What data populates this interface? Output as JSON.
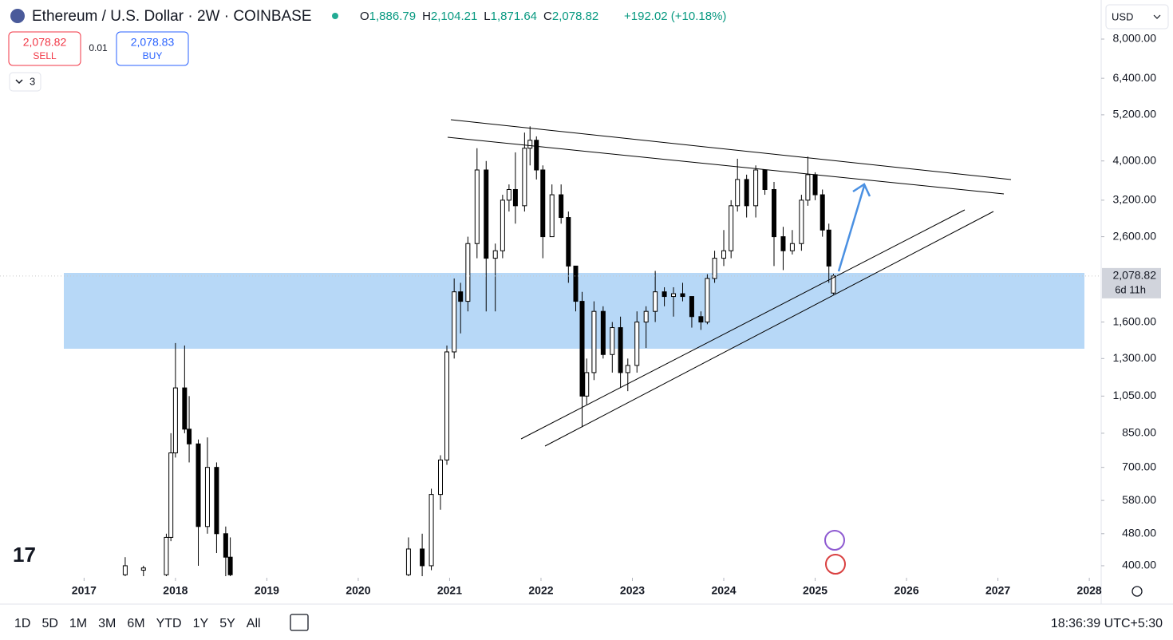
{
  "header": {
    "title": "Ethereum / U.S. Dollar · 2W · COINBASE",
    "ohlc": [
      {
        "key": "O",
        "text": "1,886.79"
      },
      {
        "key": "H",
        "text": "2,104.21"
      },
      {
        "key": "L",
        "text": "1,871.64"
      },
      {
        "key": "C",
        "text": "2,078.82"
      }
    ],
    "change": "+192.02 (+10.18%)",
    "sell": {
      "price": "2,078.82",
      "label": "SELL"
    },
    "spread": "0.01",
    "buy": {
      "price": "2,078.83",
      "label": "BUY"
    },
    "indicators": "3",
    "currency": "USD"
  },
  "chart_data": {
    "type": "candlestick",
    "log_scale": true,
    "up_color": "#ffffff",
    "down_color": "#000000",
    "zone_color": "#b7d8f7",
    "x": [
      2017.45,
      2017.65,
      2017.9,
      2017.95,
      2018.0,
      2018.1,
      2018.15,
      2018.25,
      2018.35,
      2018.45,
      2018.55,
      2018.6,
      2020.55,
      2020.7,
      2020.8,
      2020.9,
      2020.97,
      2021.05,
      2021.12,
      2021.2,
      2021.3,
      2021.4,
      2021.5,
      2021.58,
      2021.65,
      2021.72,
      2021.82,
      2021.88,
      2021.95,
      2022.02,
      2022.12,
      2022.22,
      2022.3,
      2022.38,
      2022.45,
      2022.5,
      2022.58,
      2022.68,
      2022.78,
      2022.87,
      2022.95,
      2023.05,
      2023.15,
      2023.25,
      2023.35,
      2023.45,
      2023.55,
      2023.65,
      2023.75,
      2023.82,
      2023.9,
      2024.0,
      2024.08,
      2024.15,
      2024.25,
      2024.35,
      2024.45,
      2024.55,
      2024.65,
      2024.75,
      2024.85,
      2024.92,
      2025.0,
      2025.08,
      2025.15,
      2025.2
    ],
    "open": [
      380,
      390,
      380,
      470,
      760,
      1100,
      870,
      800,
      500,
      700,
      480,
      420,
      380,
      440,
      400,
      600,
      730,
      1350,
      1900,
      1800,
      2500,
      3800,
      2300,
      2400,
      3200,
      3400,
      3100,
      4300,
      4500,
      3800,
      2600,
      3300,
      2900,
      2200,
      1800,
      1050,
      1200,
      1700,
      1330,
      1550,
      1200,
      1250,
      1600,
      1700,
      1900,
      1850,
      1880,
      1850,
      1650,
      1600,
      2050,
      2300,
      2400,
      3100,
      3600,
      3100,
      3800,
      3400,
      2600,
      2400,
      2500,
      3200,
      3700,
      3300,
      2700,
      1886.79
    ],
    "high": [
      420,
      400,
      480,
      850,
      1420,
      1400,
      1050,
      820,
      830,
      720,
      500,
      470,
      470,
      480,
      620,
      750,
      1400,
      2050,
      2000,
      2600,
      4300,
      4000,
      2500,
      3300,
      3500,
      4200,
      4700,
      4870,
      4600,
      3900,
      3500,
      3500,
      3000,
      2200,
      1900,
      1300,
      1800,
      1750,
      1600,
      1650,
      1300,
      1700,
      1750,
      2140,
      1950,
      1950,
      2000,
      1850,
      1700,
      2100,
      2400,
      2700,
      3200,
      4050,
      3700,
      3900,
      3800,
      3550,
      2750,
      2700,
      3300,
      4100,
      3750,
      3400,
      2800,
      2104.21
    ],
    "low": [
      370,
      370,
      370,
      460,
      740,
      850,
      720,
      400,
      480,
      430,
      377,
      370,
      370,
      370,
      390,
      550,
      710,
      1300,
      1500,
      1700,
      2300,
      1700,
      1700,
      2300,
      3000,
      2800,
      3000,
      3900,
      3600,
      2300,
      2600,
      2800,
      2000,
      1700,
      880,
      1000,
      1150,
      1300,
      1200,
      1100,
      1080,
      1200,
      1380,
      1600,
      1750,
      1650,
      1800,
      1550,
      1530,
      1580,
      2000,
      2200,
      2300,
      3000,
      2900,
      2900,
      3300,
      2200,
      2150,
      2350,
      2400,
      3100,
      3200,
      2600,
      2000,
      1871.64
    ],
    "close": [
      400,
      395,
      470,
      760,
      1100,
      870,
      800,
      500,
      700,
      480,
      420,
      380,
      440,
      400,
      600,
      730,
      1350,
      1900,
      1800,
      2500,
      3800,
      2300,
      2400,
      3200,
      3400,
      3100,
      4300,
      4500,
      3800,
      2600,
      3300,
      2900,
      2200,
      1800,
      1050,
      1200,
      1700,
      1330,
      1550,
      1200,
      1250,
      1600,
      1700,
      1900,
      1850,
      1880,
      1850,
      1650,
      1600,
      2050,
      2300,
      2400,
      3100,
      3600,
      3100,
      3800,
      3400,
      2600,
      2400,
      2500,
      3200,
      3700,
      3300,
      2700,
      2200,
      2078.82
    ],
    "xlim": [
      2016.08,
      2028.13
    ],
    "xticks": [
      2017,
      2018,
      2019,
      2020,
      2021,
      2022,
      2023,
      2024,
      2025,
      2026,
      2027,
      2028
    ],
    "ylim": [
      377,
      8720
    ],
    "yticks": [
      {
        "value": 400,
        "label": "400.00"
      },
      {
        "value": 480,
        "label": "480.00"
      },
      {
        "value": 580,
        "label": "580.00"
      },
      {
        "value": 700,
        "label": "700.00"
      },
      {
        "value": 850,
        "label": "850.00"
      },
      {
        "value": 1050,
        "label": "1,050.00"
      },
      {
        "value": 1300,
        "label": "1,300.00"
      },
      {
        "value": 1600,
        "label": "1,600.00"
      },
      {
        "value": 2600,
        "label": "2,600.00"
      },
      {
        "value": 3200,
        "label": "3,200.00"
      },
      {
        "value": 4000,
        "label": "4,000.00"
      },
      {
        "value": 5200,
        "label": "5,200.00"
      },
      {
        "value": 6400,
        "label": "6,400.00"
      },
      {
        "value": 8000,
        "label": "8,000.00"
      }
    ],
    "price_tag": {
      "value": 2078.82,
      "label": "2,078.82",
      "countdown": "6d 11h"
    }
  },
  "footer": {
    "ranges": [
      "1D",
      "5D",
      "1M",
      "3M",
      "6M",
      "YTD",
      "1Y",
      "5Y",
      "All"
    ],
    "clock": "18:36:39 UTC+5:30"
  }
}
